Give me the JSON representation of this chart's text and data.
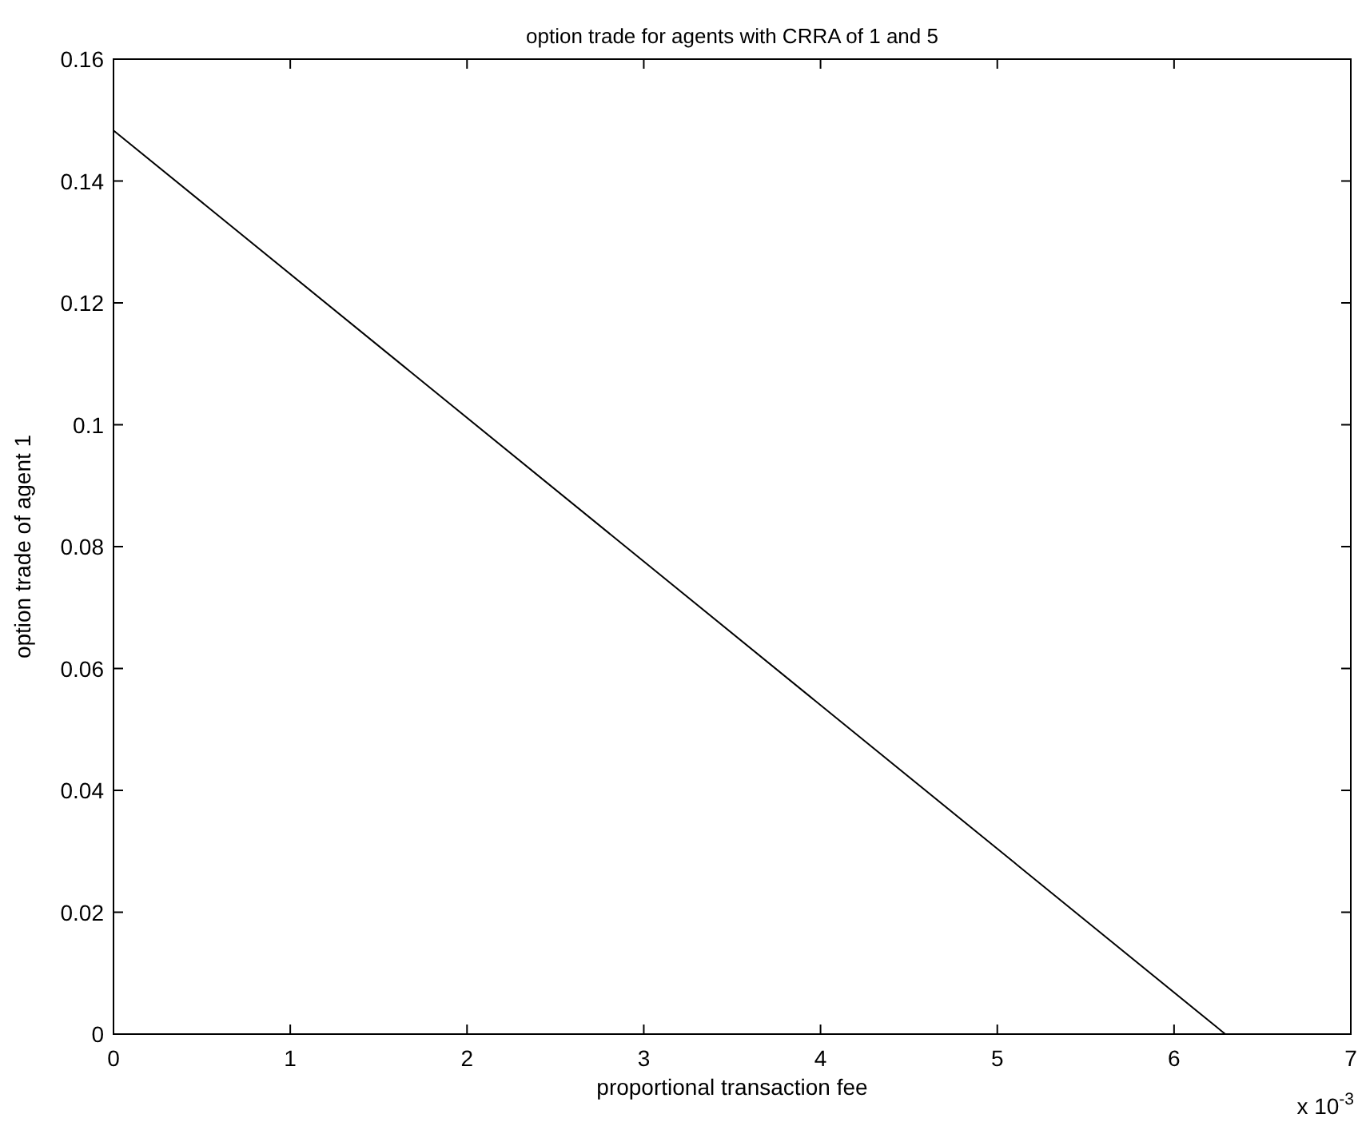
{
  "chart_data": {
    "type": "line",
    "title": "option trade for agents with CRRA of 1 and 5",
    "xlabel": "proportional transaction fee",
    "ylabel": "option trade of agent 1",
    "x": [
      0,
      6.29
    ],
    "series": [
      {
        "color": "#000000",
        "values": [
          0.1483,
          0
        ]
      }
    ],
    "xlim": [
      0,
      7
    ],
    "xticks": [
      0,
      1,
      2,
      3,
      4,
      5,
      6,
      7
    ],
    "ylim": [
      0,
      0.16
    ],
    "yticks": [
      0,
      0.02,
      0.04,
      0.06,
      0.08,
      0.1,
      0.12,
      0.14,
      0.16
    ],
    "annotations": [
      "x 10$^{-3}$"
    ],
    "grid": false,
    "marker": "none",
    "line_style": "solid"
  }
}
